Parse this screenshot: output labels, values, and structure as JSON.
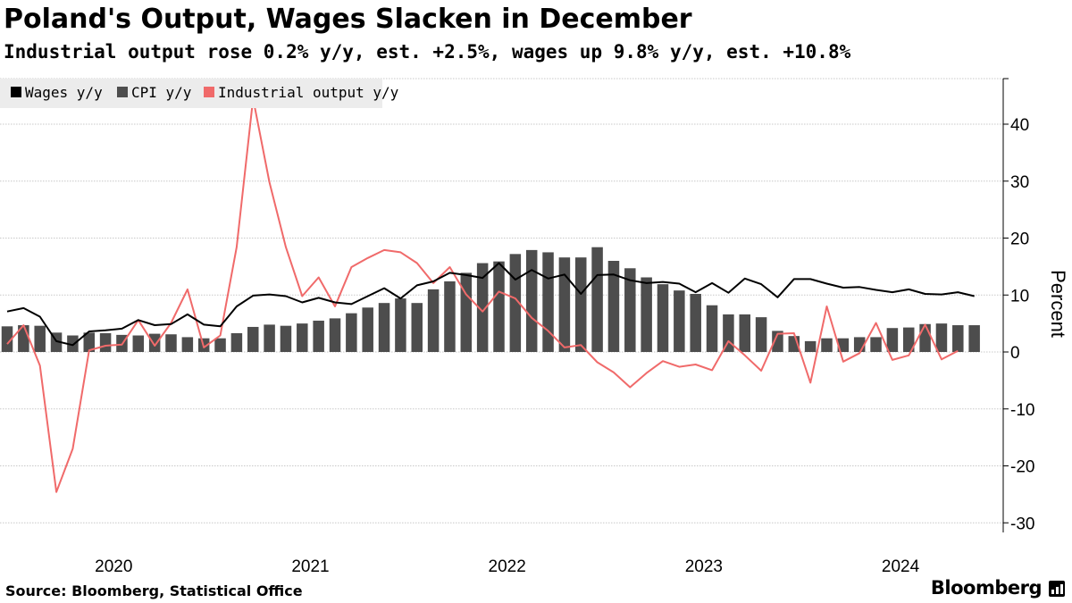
{
  "header": {
    "title": "Poland's Output, Wages Slacken in December",
    "subtitle": "Industrial output rose 0.2% y/y, est. +2.5%, wages up 9.8% y/y, est. +10.8%"
  },
  "footer": {
    "source": "Source: Bloomberg, Statistical Office",
    "brand": "Bloomberg"
  },
  "colors": {
    "wages": "#000000",
    "cpi": "#4d4d4d",
    "output": "#f06a6a",
    "grid": "#c8c8c8",
    "legend_bg": "#ececec"
  },
  "chart_data": {
    "type": "bar+line",
    "title": "Poland's Output, Wages Slacken in December",
    "ylabel": "Percent",
    "ylim": [
      -32,
      48
    ],
    "yticks": [
      -30,
      -20,
      -10,
      0,
      10,
      20,
      30,
      40
    ],
    "ytick_labels": [
      "-30",
      "-20",
      "-10",
      "0",
      "10",
      "20",
      "30",
      "40"
    ],
    "x_start": "2019-12",
    "x_end": "2024-12",
    "year_labels": [
      "2020",
      "2021",
      "2022",
      "2023",
      "2024"
    ],
    "legend": [
      {
        "key": "wages",
        "label": "Wages y/y",
        "mark": "line"
      },
      {
        "key": "cpi",
        "label": "CPI y/y",
        "mark": "bar"
      },
      {
        "key": "output",
        "label": "Industrial output y/y",
        "mark": "line"
      }
    ],
    "series": [
      {
        "key": "cpi",
        "name": "CPI y/y",
        "type": "bar",
        "values": [
          4.5,
          4.7,
          4.6,
          3.4,
          2.9,
          3.4,
          3.3,
          3.0,
          2.9,
          3.2,
          3.1,
          2.6,
          2.4,
          2.4,
          3.3,
          4.4,
          4.8,
          4.6,
          5.0,
          5.5,
          5.9,
          6.8,
          7.8,
          8.6,
          9.4,
          8.6,
          11.0,
          12.4,
          13.9,
          15.6,
          15.9,
          17.2,
          17.9,
          17.5,
          16.6,
          16.6,
          18.4,
          16.0,
          14.7,
          13.1,
          11.9,
          10.8,
          10.2,
          8.2,
          6.6,
          6.6,
          6.1,
          3.7,
          2.8,
          1.9,
          2.4,
          2.4,
          2.6,
          2.6,
          4.2,
          4.3,
          4.9,
          5.0,
          4.7,
          4.7
        ]
      },
      {
        "key": "wages",
        "name": "Wages y/y",
        "type": "line",
        "values": [
          7.1,
          7.7,
          6.2,
          1.9,
          1.2,
          3.6,
          3.8,
          4.1,
          5.6,
          4.7,
          4.9,
          6.6,
          4.8,
          4.5,
          8.0,
          9.9,
          10.1,
          9.8,
          8.7,
          9.5,
          8.7,
          8.4,
          9.8,
          11.2,
          9.4,
          11.7,
          12.4,
          13.9,
          13.5,
          13.0,
          15.6,
          12.7,
          14.4,
          12.9,
          13.6,
          10.2,
          13.5,
          13.6,
          12.6,
          12.1,
          12.3,
          12.0,
          10.5,
          12.1,
          10.4,
          12.9,
          11.9,
          9.6,
          12.8,
          12.8,
          12.0,
          11.3,
          11.4,
          10.9,
          10.5,
          11.0,
          10.2,
          10.1,
          10.5,
          9.8
        ]
      },
      {
        "key": "output",
        "name": "Industrial output y/y",
        "type": "line",
        "values": [
          1.4,
          4.7,
          -2.4,
          -24.6,
          -17.0,
          0.3,
          1.1,
          1.3,
          5.6,
          1.1,
          5.1,
          11.0,
          0.8,
          2.9,
          18.4,
          44.5,
          29.8,
          18.4,
          9.8,
          13.1,
          8.0,
          14.9,
          16.5,
          17.9,
          17.5,
          15.6,
          12.1,
          14.9,
          10.1,
          7.1,
          10.6,
          9.4,
          6.0,
          3.7,
          0.8,
          1.2,
          -1.8,
          -3.6,
          -6.2,
          -3.7,
          -1.6,
          -2.6,
          -2.2,
          -3.2,
          1.9,
          -0.6,
          -3.3,
          3.2,
          3.3,
          -5.4,
          8.0,
          -1.7,
          -0.2,
          5.1,
          -1.4,
          -0.6,
          4.8,
          -1.3,
          0.2,
          null
        ]
      }
    ]
  }
}
